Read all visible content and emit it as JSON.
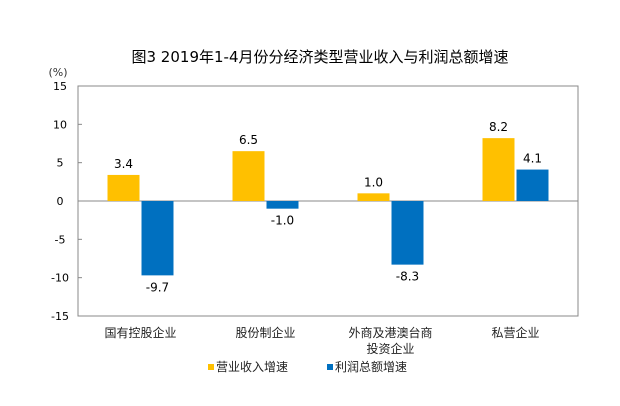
{
  "chart_data": {
    "type": "bar",
    "title": "图3 2019年1-4月份分经济类型营业收入与利润总额增速",
    "ylabel": "(%)",
    "xlabel": "",
    "ylim": [
      -15,
      15
    ],
    "yticks": [
      15,
      10,
      5,
      0,
      -5,
      -10,
      -15
    ],
    "categories": [
      [
        "国有控股企业"
      ],
      [
        "股份制企业"
      ],
      [
        "外商及港澳台商",
        "投资企业"
      ],
      [
        "私营企业"
      ]
    ],
    "series": [
      {
        "name": "营业收入增速",
        "color": "#FFC000",
        "values": [
          3.4,
          6.5,
          1.0,
          8.2
        ]
      },
      {
        "name": "利润总额增速",
        "color": "#0070C0",
        "values": [
          -9.7,
          -1.0,
          -8.3,
          4.1
        ]
      }
    ],
    "legend": "bottom",
    "grid": false
  }
}
